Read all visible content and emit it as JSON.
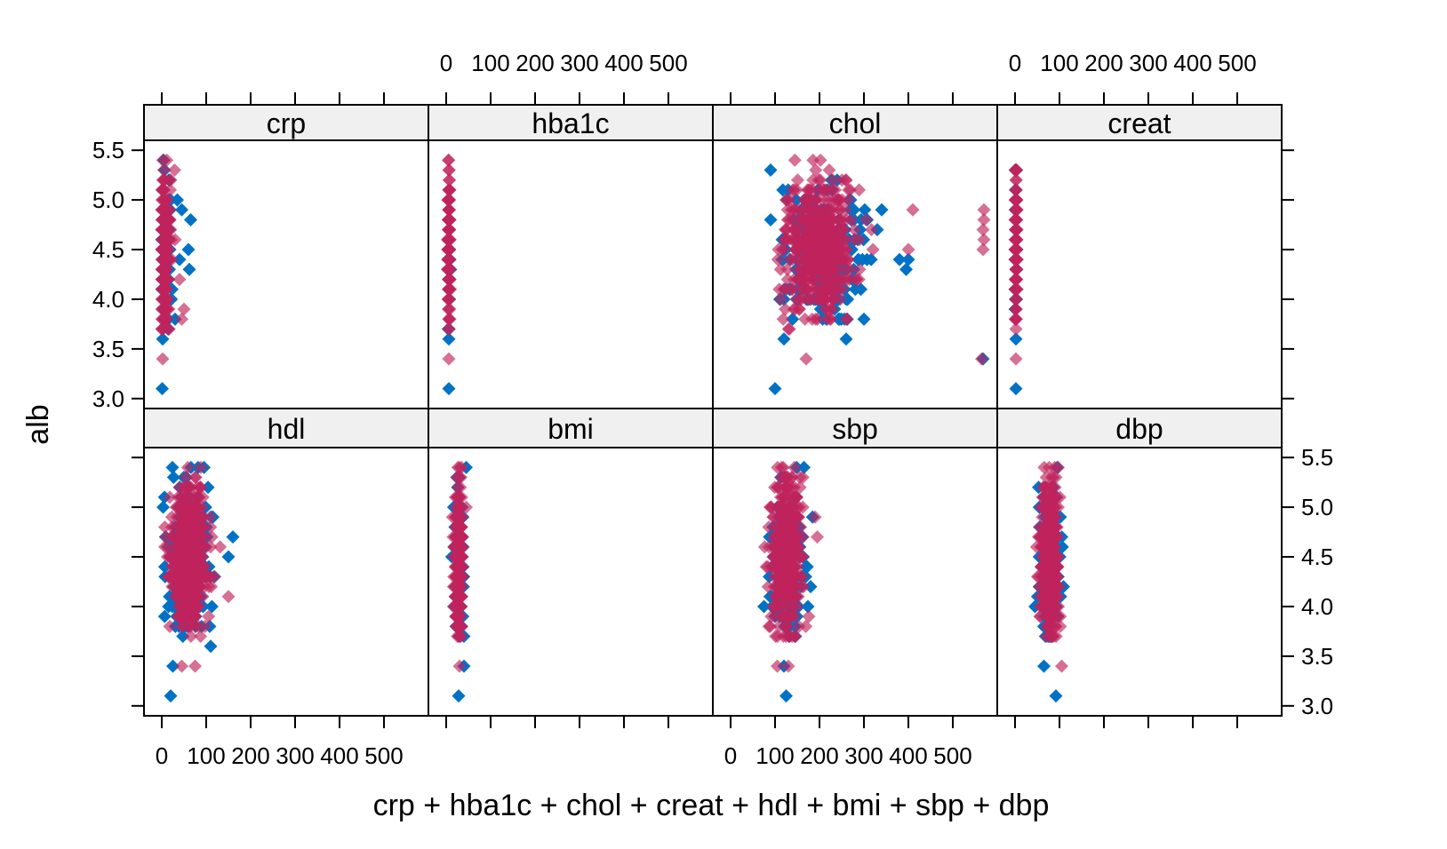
{
  "chart_data": {
    "type": "scatter",
    "layout": "lattice 4x2 panels, shared x and y axes",
    "xlabel": "crp + hba1c + chol + creat + hdl + bmi + sbp + dbp",
    "ylabel": "alb",
    "xlim": [
      -40,
      600
    ],
    "ylim": [
      2.9,
      5.6
    ],
    "x_ticks": [
      0,
      100,
      200,
      300,
      400,
      500
    ],
    "y_ticks": [
      3.0,
      3.5,
      4.0,
      4.5,
      5.0,
      5.5
    ],
    "grid": false,
    "legend": "none",
    "colors": {
      "series1": "#0072c6",
      "series2": "#c0245c",
      "strip_bg": "#f0f0f0",
      "frame": "#000000"
    },
    "series": [
      {
        "color": "#0072c6",
        "opacity": 1.0
      },
      {
        "color": "#c0245c",
        "opacity": 0.65
      }
    ],
    "panels": [
      {
        "name": "crp",
        "points": [
          {
            "s": 0,
            "x": 1,
            "y": 3.1
          },
          {
            "s": 0,
            "x": 2,
            "y": 3.6
          },
          {
            "s": 1,
            "x": 2,
            "y": 3.4
          },
          {
            "s": 0,
            "x": 35,
            "y": 5.0
          },
          {
            "s": 0,
            "x": 45,
            "y": 4.9
          },
          {
            "s": 0,
            "x": 65,
            "y": 4.8
          },
          {
            "s": 0,
            "x": 60,
            "y": 4.5
          },
          {
            "s": 0,
            "x": 62,
            "y": 4.3
          },
          {
            "s": 0,
            "x": 40,
            "y": 4.4
          },
          {
            "s": 1,
            "x": 50,
            "y": 3.9
          },
          {
            "s": 1,
            "x": 45,
            "y": 3.8
          },
          {
            "s": 0,
            "x": 30,
            "y": 3.8
          },
          {
            "s": 1,
            "x": 40,
            "y": 4.2
          },
          {
            "s": 1,
            "x": 30,
            "y": 4.6
          }
        ],
        "clouds": [
          {
            "s": 0,
            "cx": 8,
            "cy": 4.45,
            "sx": 7,
            "sy": 0.35,
            "n": 110
          },
          {
            "s": 1,
            "cx": 6,
            "cy": 4.5,
            "sx": 6,
            "sy": 0.38,
            "n": 240
          }
        ]
      },
      {
        "name": "hba1c",
        "points": [
          {
            "s": 0,
            "x": 6,
            "y": 3.1
          },
          {
            "s": 0,
            "x": 6,
            "y": 3.6
          },
          {
            "s": 1,
            "x": 6,
            "y": 3.4
          }
        ],
        "clouds": [
          {
            "s": 0,
            "cx": 6,
            "cy": 4.45,
            "sx": 1.2,
            "sy": 0.35,
            "n": 40
          },
          {
            "s": 1,
            "cx": 6,
            "cy": 4.5,
            "sx": 1.2,
            "sy": 0.38,
            "n": 160
          }
        ]
      },
      {
        "name": "chol",
        "points": [
          {
            "s": 0,
            "x": 100,
            "y": 3.1
          },
          {
            "s": 1,
            "x": 170,
            "y": 3.4
          },
          {
            "s": 0,
            "x": 90,
            "y": 5.3
          },
          {
            "s": 1,
            "x": 570,
            "y": 4.9
          },
          {
            "s": 1,
            "x": 570,
            "y": 4.8
          },
          {
            "s": 1,
            "x": 568,
            "y": 4.7
          },
          {
            "s": 1,
            "x": 570,
            "y": 4.6
          },
          {
            "s": 1,
            "x": 568,
            "y": 4.5
          },
          {
            "s": 1,
            "x": 565,
            "y": 3.4
          },
          {
            "s": 0,
            "x": 568,
            "y": 3.4
          },
          {
            "s": 0,
            "x": 380,
            "y": 4.4
          },
          {
            "s": 0,
            "x": 395,
            "y": 4.3
          },
          {
            "s": 0,
            "x": 400,
            "y": 4.4
          },
          {
            "s": 1,
            "x": 400,
            "y": 4.5
          },
          {
            "s": 1,
            "x": 410,
            "y": 4.9
          },
          {
            "s": 0,
            "x": 340,
            "y": 4.9
          },
          {
            "s": 0,
            "x": 330,
            "y": 4.7
          },
          {
            "s": 0,
            "x": 300,
            "y": 3.8
          },
          {
            "s": 0,
            "x": 260,
            "y": 3.6
          },
          {
            "s": 0,
            "x": 120,
            "y": 3.6
          }
        ],
        "clouds": [
          {
            "s": 0,
            "cx": 200,
            "cy": 4.45,
            "sx": 42,
            "sy": 0.33,
            "n": 260
          },
          {
            "s": 1,
            "cx": 200,
            "cy": 4.5,
            "sx": 36,
            "sy": 0.33,
            "n": 520
          }
        ]
      },
      {
        "name": "creat",
        "points": [
          {
            "s": 0,
            "x": 2,
            "y": 3.1
          },
          {
            "s": 0,
            "x": 2,
            "y": 3.6
          },
          {
            "s": 1,
            "x": 2,
            "y": 3.4
          }
        ],
        "clouds": [
          {
            "s": 0,
            "cx": 2,
            "cy": 4.45,
            "sx": 1,
            "sy": 0.35,
            "n": 40
          },
          {
            "s": 1,
            "cx": 2,
            "cy": 4.5,
            "sx": 1,
            "sy": 0.38,
            "n": 160
          }
        ]
      },
      {
        "name": "hdl",
        "points": [
          {
            "s": 0,
            "x": 20,
            "y": 3.1
          },
          {
            "s": 0,
            "x": 25,
            "y": 3.4
          },
          {
            "s": 1,
            "x": 45,
            "y": 3.4
          },
          {
            "s": 1,
            "x": 75,
            "y": 3.4
          },
          {
            "s": 0,
            "x": 110,
            "y": 3.6
          },
          {
            "s": 0,
            "x": 160,
            "y": 4.7
          },
          {
            "s": 0,
            "x": 150,
            "y": 4.5
          },
          {
            "s": 1,
            "x": 150,
            "y": 4.1
          },
          {
            "s": 0,
            "x": 95,
            "y": 5.4
          }
        ],
        "clouds": [
          {
            "s": 0,
            "cx": 60,
            "cy": 4.45,
            "sx": 22,
            "sy": 0.35,
            "n": 260
          },
          {
            "s": 1,
            "cx": 60,
            "cy": 4.5,
            "sx": 20,
            "sy": 0.36,
            "n": 500
          }
        ]
      },
      {
        "name": "bmi",
        "points": [
          {
            "s": 0,
            "x": 28,
            "y": 3.1
          },
          {
            "s": 0,
            "x": 40,
            "y": 3.4
          },
          {
            "s": 1,
            "x": 30,
            "y": 3.4
          },
          {
            "s": 0,
            "x": 45,
            "y": 5.4
          }
        ],
        "clouds": [
          {
            "s": 0,
            "cx": 28,
            "cy": 4.45,
            "sx": 5,
            "sy": 0.35,
            "n": 160
          },
          {
            "s": 1,
            "cx": 28,
            "cy": 4.5,
            "sx": 4.5,
            "sy": 0.36,
            "n": 340
          }
        ]
      },
      {
        "name": "sbp",
        "points": [
          {
            "s": 0,
            "x": 125,
            "y": 3.1
          },
          {
            "s": 0,
            "x": 120,
            "y": 3.4
          },
          {
            "s": 1,
            "x": 105,
            "y": 3.4
          },
          {
            "s": 1,
            "x": 130,
            "y": 3.4
          },
          {
            "s": 0,
            "x": 75,
            "y": 4.0
          },
          {
            "s": 0,
            "x": 165,
            "y": 5.4
          },
          {
            "s": 1,
            "x": 190,
            "y": 4.9
          },
          {
            "s": 1,
            "x": 195,
            "y": 4.7
          },
          {
            "s": 0,
            "x": 180,
            "y": 4.2
          }
        ],
        "clouds": [
          {
            "s": 0,
            "cx": 125,
            "cy": 4.45,
            "sx": 18,
            "sy": 0.36,
            "n": 220
          },
          {
            "s": 1,
            "cx": 125,
            "cy": 4.5,
            "sx": 16,
            "sy": 0.36,
            "n": 440
          }
        ]
      },
      {
        "name": "dbp",
        "points": [
          {
            "s": 0,
            "x": 92,
            "y": 3.1
          },
          {
            "s": 0,
            "x": 65,
            "y": 3.4
          },
          {
            "s": 1,
            "x": 105,
            "y": 3.4
          },
          {
            "s": 0,
            "x": 95,
            "y": 5.4
          },
          {
            "s": 0,
            "x": 45,
            "y": 4.0
          }
        ],
        "clouds": [
          {
            "s": 0,
            "cx": 78,
            "cy": 4.45,
            "sx": 11,
            "sy": 0.36,
            "n": 200
          },
          {
            "s": 1,
            "cx": 78,
            "cy": 4.5,
            "sx": 10,
            "sy": 0.36,
            "n": 420
          }
        ]
      }
    ]
  }
}
